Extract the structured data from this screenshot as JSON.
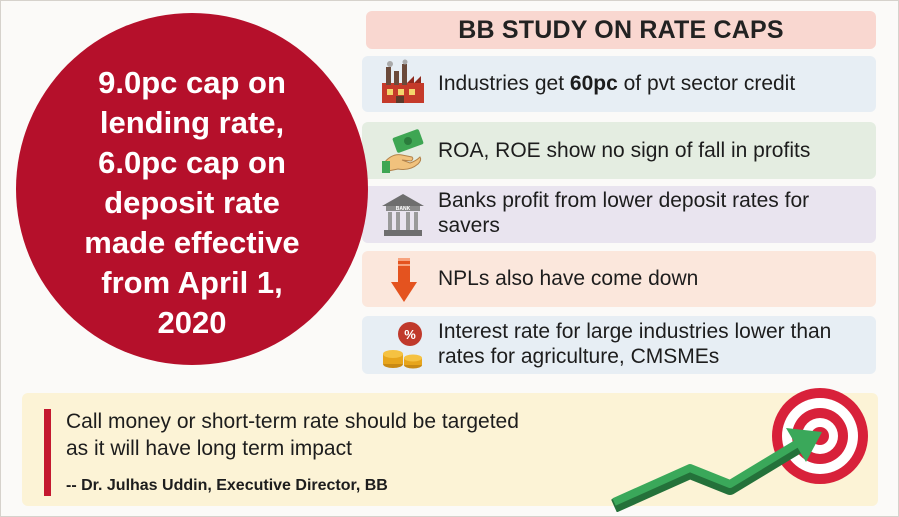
{
  "header": {
    "title": "BB STUDY ON RATE CAPS"
  },
  "circle": {
    "lines": [
      "9.0pc cap on",
      "lending rate,",
      "6.0pc cap on",
      "deposit rate",
      "made effective",
      "from April 1,",
      "2020"
    ]
  },
  "findings": [
    {
      "icon": "factory-icon",
      "pre": "Industries get ",
      "bold": "60pc",
      "post": " of pvt sector credit"
    },
    {
      "icon": "money-hand-icon",
      "text": "ROA, ROE show no sign of fall in profits"
    },
    {
      "icon": "bank-icon",
      "text": "Banks profit from lower deposit rates for savers",
      "icon_label": "BANK"
    },
    {
      "icon": "down-arrow-icon",
      "text": "NPLs also have come down"
    },
    {
      "icon": "percent-coins-icon",
      "text": "Interest rate for large industries lower than rates for agriculture, CMSMEs",
      "icon_label": "%"
    }
  ],
  "quote": {
    "line1": "Call money or short-term rate should be targeted",
    "line2": "as it will have long term impact",
    "attribution": "-- Dr. Julhas Uddin, Executive Director, BB"
  },
  "colors": {
    "circle": "#b5102b",
    "header_bg": "#f9d7d0",
    "quote_bg": "#fcf3d6",
    "arrow": "#2e9a4c"
  },
  "decor": {
    "target_icon": "target-arrow-icon"
  }
}
